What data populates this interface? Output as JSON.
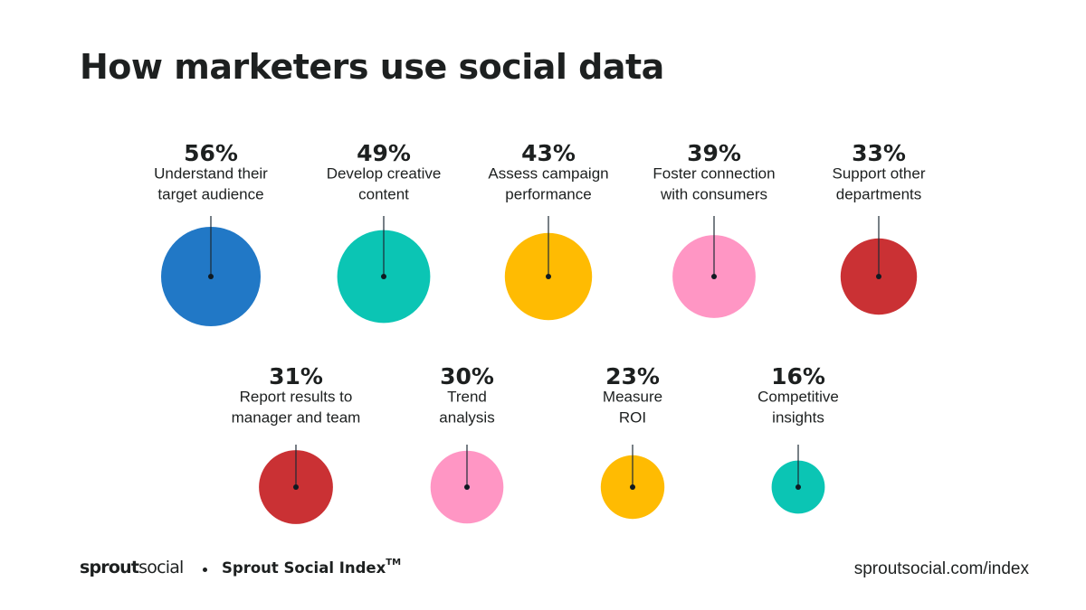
{
  "title": "How marketers use social data",
  "chart_data": {
    "type": "bubble",
    "unit": "%",
    "items": [
      {
        "value": 56,
        "label": "56%",
        "lines": [
          "Understand their",
          "target audience"
        ],
        "color": "#2178c6"
      },
      {
        "value": 49,
        "label": "49%",
        "lines": [
          "Develop creative",
          "content"
        ],
        "color": "#0bc5b4"
      },
      {
        "value": 43,
        "label": "43%",
        "lines": [
          "Assess campaign",
          "performance"
        ],
        "color": "#ffbb02"
      },
      {
        "value": 39,
        "label": "39%",
        "lines": [
          "Foster connection",
          "with consumers"
        ],
        "color": "#ff96c4"
      },
      {
        "value": 33,
        "label": "33%",
        "lines": [
          "Support other",
          "departments"
        ],
        "color": "#ca3134"
      },
      {
        "value": 31,
        "label": "31%",
        "lines": [
          "Report results to",
          "manager and team"
        ],
        "color": "#ca3134"
      },
      {
        "value": 30,
        "label": "30%",
        "lines": [
          "Trend",
          "analysis"
        ],
        "color": "#ff96c4"
      },
      {
        "value": 23,
        "label": "23%",
        "lines": [
          "Measure",
          "ROI"
        ],
        "color": "#ffbb02"
      },
      {
        "value": 16,
        "label": "16%",
        "lines": [
          "Competitive",
          "insights"
        ],
        "color": "#0bc5b4"
      }
    ]
  },
  "footer": {
    "logo_part1": "sprout",
    "logo_part2": "social",
    "index_label": "Sprout Social Index",
    "trademark": "TM",
    "url": "sproutsocial.com/index"
  }
}
